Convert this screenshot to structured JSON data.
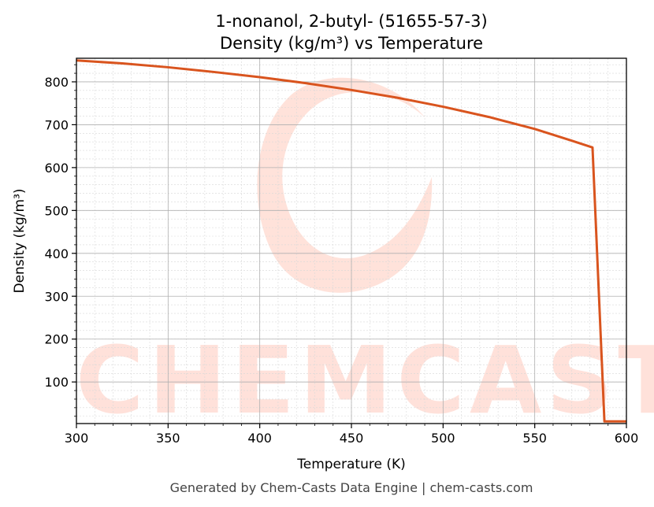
{
  "chart_data": {
    "type": "line",
    "title": "1-nonanol, 2-butyl- (51655-57-3)",
    "subtitle": "Density (kg/m³) vs Temperature",
    "xlabel": "Temperature (K)",
    "ylabel": "Density (kg/m³)",
    "xlim": [
      300,
      600
    ],
    "ylim": [
      3,
      855
    ],
    "xticks": [
      300,
      350,
      400,
      450,
      500,
      550,
      600
    ],
    "yticks": [
      100,
      200,
      300,
      400,
      500,
      600,
      700,
      800
    ],
    "grid": true,
    "series": [
      {
        "color": "#d9541e",
        "x": [
          300,
          325,
          350,
          375,
          400,
          425,
          450,
          475,
          500,
          525,
          550,
          570,
          581.5,
          588,
          600
        ],
        "y": [
          850,
          843,
          834,
          823,
          811,
          797,
          781,
          763,
          742,
          718,
          690,
          663,
          647,
          8,
          8
        ]
      }
    ]
  },
  "footer": "Generated by Chem-Casts Data Engine | chem-casts.com",
  "watermark": "CHEMCASTS",
  "colors": {
    "line": "#d9541e",
    "watermark": "#ffb9a8"
  }
}
